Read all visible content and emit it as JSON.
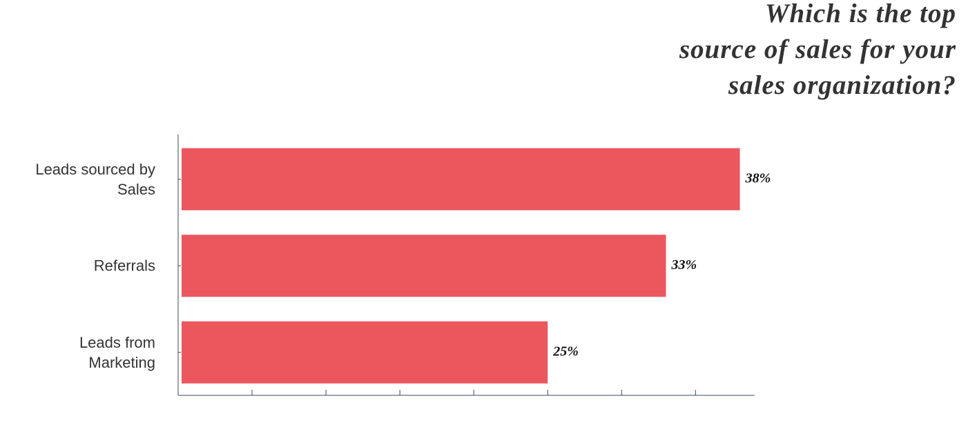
{
  "chart_data": {
    "type": "hbar",
    "title": "Which is the top\nsource of sales for your\nsales organization?",
    "categories": [
      "Leads sourced by\nSales",
      "Referrals",
      "Leads from\nMarketing"
    ],
    "values": [
      38,
      33,
      25
    ],
    "value_labels": [
      "38%",
      "33%",
      "25%"
    ],
    "color": "#eb575d",
    "xlim": [
      0,
      39
    ],
    "xticks": [
      0,
      5,
      10,
      15,
      20,
      25,
      30,
      35
    ]
  }
}
